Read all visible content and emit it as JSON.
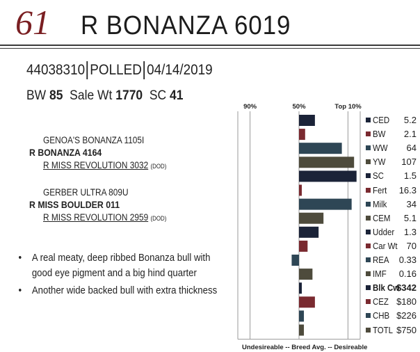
{
  "header": {
    "lot": "61",
    "name": "R  BONANZA 6019"
  },
  "ids": {
    "reg": "44038310",
    "horn": "POLLED",
    "dob": "04/14/2019"
  },
  "stats": {
    "bw_label": "BW",
    "bw": "85",
    "sale_label": "Sale Wt",
    "sale": "1770",
    "sc_label": "SC",
    "sc": "41"
  },
  "pedigree": {
    "sire_sire": "GENOA'S BONANZA 1105I",
    "sire": "R BONANZA 4164",
    "sire_dam": "R MISS REVOLUTION 3032",
    "sire_dam_note": "(DOD)",
    "dam_sire": "GERBER ULTRA 809U",
    "dam": "R MISS BOULDER 011",
    "dam_dam": "R MISS REVOLUTION 2959",
    "dam_dam_note": "(DOD)"
  },
  "bullets": [
    {
      "marker": "•",
      "line1": "A real meaty, deep ribbed Bonanza bull with",
      "line2": "good eye pigment and a big hind quarter"
    },
    {
      "marker": "•",
      "line1": "Another wide backed bull with extra thickness",
      "line2": ""
    }
  ],
  "chart_data": {
    "type": "bar",
    "orientation": "horizontal",
    "axis_labels": {
      "p90": "90%",
      "p50": "50%",
      "top10": "Top 10%"
    },
    "axis_positions": {
      "p90": 90,
      "p50": 50,
      "top10": 10
    },
    "legend": "Undesireable -- Breed Avg. -- Desireable",
    "rows": [
      {
        "trait": "CED",
        "value": "5.2",
        "percentile": 37,
        "color": "#1b2338",
        "bold": false
      },
      {
        "trait": "BW",
        "value": "2.1",
        "percentile": 45,
        "color": "#7a2a30",
        "bold": false
      },
      {
        "trait": "WW",
        "value": "64",
        "percentile": 15,
        "color": "#2e4655",
        "bold": false
      },
      {
        "trait": "YW",
        "value": "107",
        "percentile": 5,
        "color": "#4e4b3c",
        "bold": false
      },
      {
        "trait": "SC",
        "value": "1.5",
        "percentile": 3,
        "color": "#1b2338",
        "bold": false
      },
      {
        "trait": "Fert",
        "value": "16.3",
        "percentile": 48,
        "color": "#7a2a30",
        "bold": false
      },
      {
        "trait": "Milk",
        "value": "34",
        "percentile": 7,
        "color": "#2e4655",
        "bold": false
      },
      {
        "trait": "CEM",
        "value": "5.1",
        "percentile": 30,
        "color": "#4e4b3c",
        "bold": false
      },
      {
        "trait": "Udder",
        "value": "1.3",
        "percentile": 34,
        "color": "#1b2338",
        "bold": false
      },
      {
        "trait": "Car Wt",
        "value": "70",
        "percentile": 43,
        "color": "#7a2a30",
        "bold": false
      },
      {
        "trait": "REA",
        "value": "0.33",
        "percentile": 56,
        "color": "#2e4655",
        "bold": false
      },
      {
        "trait": "IMF",
        "value": "0.16",
        "percentile": 39,
        "color": "#4e4b3c",
        "bold": false
      },
      {
        "trait": "Blk Cw",
        "value": "$342",
        "percentile": 48,
        "color": "#1b2338",
        "bold": true
      },
      {
        "trait": "CEZ",
        "value": "$180",
        "percentile": 37,
        "color": "#7a2a30",
        "bold": false
      },
      {
        "trait": "CHB",
        "value": "$226",
        "percentile": 46,
        "color": "#2e4655",
        "bold": false
      },
      {
        "trait": "TOTL",
        "value": "$750",
        "percentile": 46,
        "color": "#4e4b3c",
        "bold": false
      }
    ]
  }
}
